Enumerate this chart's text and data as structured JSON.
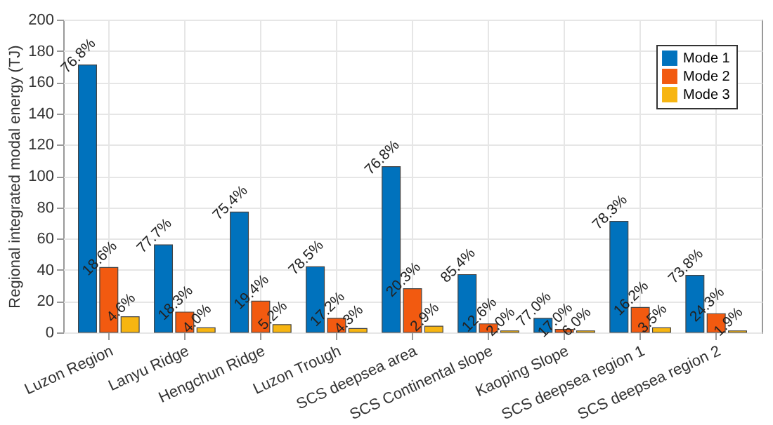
{
  "chart_data": {
    "type": "bar",
    "ylabel": "Regional integrated modal energy (TJ)",
    "categories": [
      "Luzon Region",
      "Lanyu Ridge",
      "Hengchun Ridge",
      "Luzon Trough",
      "SCS deepsea area",
      "SCS Continental slope",
      "Kaoping Slope",
      "SCS deepsea region 1",
      "SCS deepsea region 2"
    ],
    "series": [
      {
        "name": "Mode 1",
        "color": "#0072bd",
        "values": [
          171,
          56,
          77,
          42,
          106,
          37,
          9,
          71,
          36.5
        ]
      },
      {
        "name": "Mode 2",
        "color": "#f25a10",
        "values": [
          41.5,
          13,
          20,
          9,
          28,
          5.5,
          2,
          16,
          12
        ]
      },
      {
        "name": "Mode 3",
        "color": "#f7b511",
        "values": [
          10,
          3,
          5,
          2.5,
          4,
          1,
          1,
          3,
          1
        ]
      }
    ],
    "annotations": [
      "76.8%",
      "18.6%",
      "4.6%",
      "77.7%",
      "18.3%",
      "4.0%",
      "75.4%",
      "19.4%",
      "5.2%",
      "78.5%",
      "17.2%",
      "4.3%",
      "76.8%",
      "20.3%",
      "2.9%",
      "85.4%",
      "12.6%",
      "2.0%",
      "77.0%",
      "17.0%",
      "6.0%",
      "78.3%",
      "16.2%",
      "3.5%",
      "73.8%",
      "24.3%",
      "1.9%"
    ],
    "ylim": [
      0,
      200
    ],
    "yticks": [
      0,
      20,
      40,
      60,
      80,
      100,
      120,
      140,
      160,
      180,
      200
    ],
    "grid": true,
    "legend": "top right"
  }
}
